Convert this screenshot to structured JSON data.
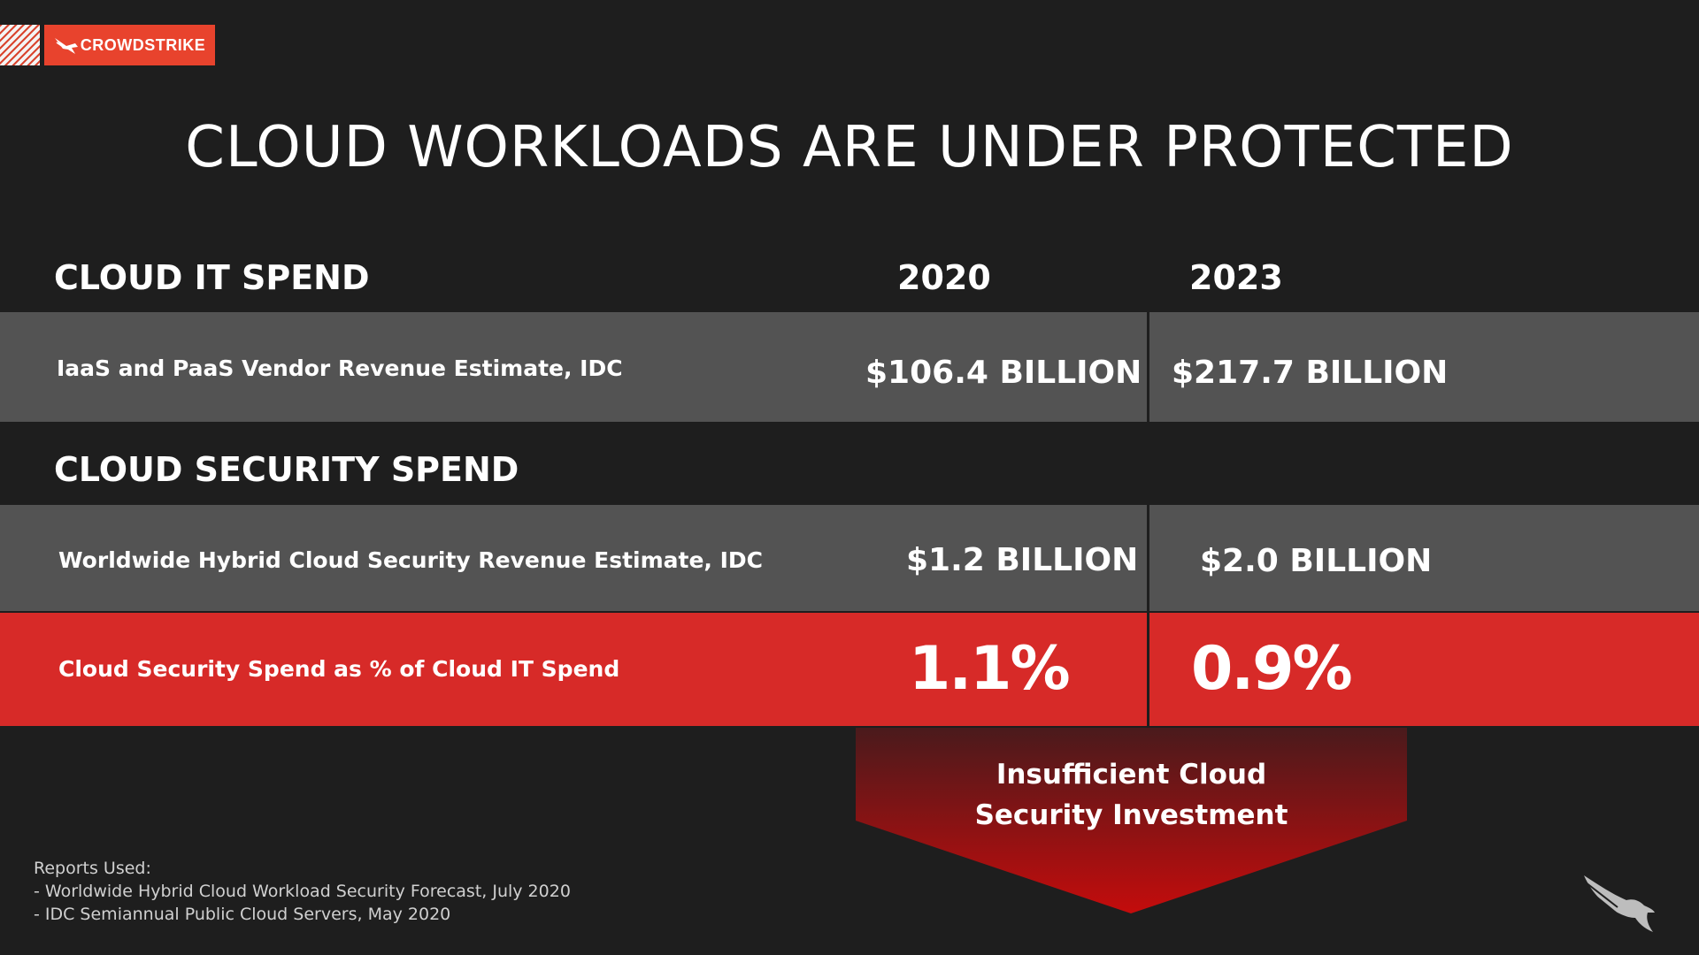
{
  "brand": {
    "name": "CROWDSTRIKE",
    "color": "#e8432d"
  },
  "title": "CLOUD WORKLOADS ARE UNDER PROTECTED",
  "cloud_it": {
    "heading": "CLOUD IT SPEND",
    "year_2020": "2020",
    "year_2023": "2023",
    "row": {
      "label": "IaaS and PaaS Vendor Revenue Estimate, IDC",
      "v2020": "$106.4 BILLION",
      "v2023": "$217.7 BILLION"
    }
  },
  "cloud_security": {
    "heading": "CLOUD SECURITY SPEND",
    "row": {
      "label": "Worldwide Hybrid Cloud Security Revenue Estimate, IDC",
      "v2020": "$1.2 BILLION",
      "v2023": "$2.0 BILLION"
    }
  },
  "ratio": {
    "label": "Cloud Security Spend as % of Cloud IT Spend",
    "v2020": "1.1%",
    "v2023": "0.9%"
  },
  "callout": {
    "line1": "Insufficient Cloud",
    "line2": "Security Investment"
  },
  "reports": {
    "heading": "Reports Used:",
    "items": [
      "- Worldwide Hybrid Cloud Workload Security Forecast, July 2020",
      "- IDC Semiannual Public Cloud Servers, May 2020"
    ]
  },
  "icons": {
    "logo": "falcon-icon",
    "watermark": "falcon-watermark-icon"
  },
  "colors": {
    "background": "#1e1e1e",
    "row_gray": "#535353",
    "row_red": "#d72a28"
  }
}
